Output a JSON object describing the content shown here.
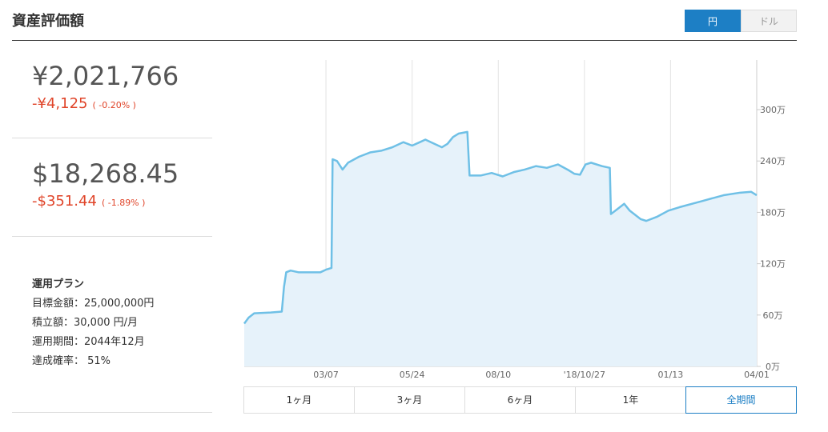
{
  "header": {
    "title": "資産評価額",
    "toggle": [
      "円",
      "ドル"
    ]
  },
  "summary": {
    "jpy": {
      "value": "¥2,021,766",
      "change": "-¥4,125",
      "pct": "( -0.20% )"
    },
    "usd": {
      "value": "$18,268.45",
      "change": "-$351.44",
      "pct": "( -1.89% )"
    }
  },
  "plan": {
    "title": "運用プラン",
    "lines": [
      "目標金額：25,000,000円",
      "積立額：30,000 円/月",
      "運用期間：2044年12月",
      "達成確率： 51%"
    ]
  },
  "chart_data": {
    "type": "line",
    "color": "#6fc0e6",
    "x": [
      -74,
      -70,
      -65,
      -50,
      -40,
      -38,
      -36,
      -32,
      -25,
      -15,
      -5,
      0,
      5,
      6,
      10,
      15,
      20,
      30,
      40,
      50,
      60,
      70,
      78,
      85,
      90,
      95,
      105,
      110,
      115,
      120,
      128,
      130,
      140,
      150,
      160,
      170,
      180,
      190,
      200,
      210,
      220,
      225,
      230,
      235,
      240,
      250,
      257,
      258,
      265,
      270,
      275,
      285,
      290,
      300,
      310,
      320,
      340,
      360,
      375,
      385,
      390
    ],
    "values": [
      50,
      57,
      62,
      63,
      64,
      93,
      110,
      112,
      110,
      110,
      110,
      113,
      115,
      242,
      240,
      230,
      238,
      245,
      250,
      252,
      256,
      262,
      258,
      262,
      265,
      262,
      256,
      260,
      268,
      272,
      274,
      223,
      223,
      226,
      222,
      227,
      230,
      234,
      232,
      236,
      229,
      225,
      224,
      236,
      238,
      234,
      232,
      178,
      185,
      190,
      182,
      172,
      170,
      175,
      182,
      186,
      193,
      200,
      203,
      204,
      200
    ],
    "xlim": [
      -74,
      390
    ],
    "xticks": [
      {
        "value": 0,
        "label": "03/07"
      },
      {
        "value": 78,
        "label": "05/24"
      },
      {
        "value": 156,
        "label": "08/10"
      },
      {
        "value": 234,
        "label": "'18/10/27"
      },
      {
        "value": 312,
        "label": "01/13"
      },
      {
        "value": 390,
        "label": "04/01"
      }
    ],
    "ylim": [
      0,
      358
    ],
    "yticks": [
      {
        "value": 0,
        "label": "0万"
      },
      {
        "value": 60,
        "label": "60万"
      },
      {
        "value": 120,
        "label": "120万"
      },
      {
        "value": 180,
        "label": "180万"
      },
      {
        "value": 240,
        "label": "240万"
      },
      {
        "value": 300,
        "label": "300万"
      }
    ]
  },
  "ranges": [
    "1ヶ月",
    "3ヶ月",
    "6ヶ月",
    "1年",
    "全期間"
  ]
}
